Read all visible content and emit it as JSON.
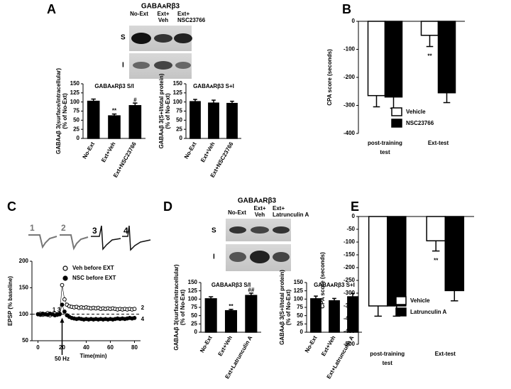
{
  "panels": {
    "A": {
      "letter": "A",
      "blot_title": "GABAᴀRβ3",
      "lanes": [
        [
          "No-Ext"
        ],
        [
          "Ext+",
          "Veh"
        ],
        [
          "Ext+",
          "NSC23766"
        ]
      ],
      "rows": [
        "S",
        "I"
      ]
    },
    "B": {
      "letter": "B"
    },
    "C": {
      "letter": "C",
      "traces": [
        "1",
        "2",
        "3",
        "4"
      ]
    },
    "D": {
      "letter": "D",
      "blot_title": "GABAᴀRβ3",
      "lanes": [
        [
          "No-Ext"
        ],
        [
          "Ext+",
          "Veh"
        ],
        [
          "Ext+",
          "Latrunculin A"
        ]
      ],
      "rows": [
        "S",
        "I"
      ]
    },
    "E": {
      "letter": "E"
    }
  },
  "chart_data": [
    {
      "type": "bar",
      "title": "GABAᴀRβ3 S/I",
      "ylabel": [
        "GABAᴀβ 3(surface/intracellular)",
        "(% of No-Ext)"
      ],
      "categories": [
        "No-Ext",
        "Ext+Veh",
        "Ext+NSC23766"
      ],
      "values": [
        102,
        62,
        90
      ],
      "errors": [
        6,
        5,
        7
      ],
      "significance": [
        null,
        "**",
        "#"
      ],
      "color": "#000000",
      "label_rotation": -60,
      "ylim": [
        0,
        150
      ],
      "yticks": [
        0,
        25,
        50,
        75,
        100,
        125,
        150
      ]
    },
    {
      "type": "bar",
      "title": "GABAᴀRβ3 S+I",
      "ylabel": [
        "GABAᴀβ 3(S+I/total protein)",
        "(% of No-Ext)"
      ],
      "categories": [
        "No-Ext",
        "Ext+Veh",
        "Ext+NSC23766"
      ],
      "values": [
        101,
        97,
        96
      ],
      "errors": [
        6,
        8,
        6
      ],
      "color": "#000000",
      "label_rotation": -60,
      "ylim": [
        0,
        150
      ],
      "yticks": [
        0,
        25,
        50,
        75,
        100,
        125,
        150
      ]
    },
    {
      "type": "bar",
      "ylabel": [
        "CPA score (seconds)"
      ],
      "categories": [
        [
          "post-training",
          "test"
        ],
        [
          "Ext-test"
        ]
      ],
      "series": [
        {
          "name": "Vehicle",
          "color": "#ffffff",
          "values": [
            -265,
            -50
          ],
          "errors": [
            40,
            40
          ],
          "significance": [
            null,
            "**"
          ]
        },
        {
          "name": "NSC23766",
          "color": "#000000",
          "values": [
            -270,
            -255
          ],
          "errors": [
            40,
            35
          ]
        }
      ],
      "legend": "lower right",
      "ylim": [
        -400,
        0
      ],
      "yticks": [
        0,
        -100,
        -200,
        -300,
        -400
      ]
    },
    {
      "type": "line",
      "ylabel": [
        "EPSP (% baseline)"
      ],
      "xlabel": "Time(min)",
      "x": [
        0,
        2,
        4,
        6,
        8,
        10,
        12,
        14,
        16,
        18,
        20,
        22,
        24,
        26,
        28,
        30,
        32,
        34,
        36,
        38,
        40,
        42,
        44,
        46,
        48,
        50,
        52,
        54,
        56,
        58,
        60,
        62,
        64,
        66,
        68,
        70,
        72,
        74,
        76,
        78,
        80
      ],
      "series": [
        {
          "name": "Veh before EXT",
          "color": "#000000",
          "marker_fill": "#ffffff",
          "values": [
            100,
            101,
            99,
            100,
            102,
            98,
            100,
            101,
            99,
            100,
            155,
            128,
            118,
            115,
            114,
            113,
            114,
            112,
            113,
            112,
            113,
            112,
            111,
            112,
            111,
            112,
            110,
            111,
            110,
            111,
            110,
            111,
            110,
            109,
            110,
            109,
            110,
            109,
            110,
            109,
            110
          ]
        },
        {
          "name": "NSC before EXT",
          "color": "#000000",
          "marker_fill": "#000000",
          "values": [
            100,
            99,
            101,
            100,
            99,
            101,
            100,
            98,
            100,
            101,
            118,
            105,
            98,
            95,
            93,
            92,
            91,
            92,
            91,
            90,
            91,
            90,
            91,
            90,
            91,
            90,
            91,
            90,
            91,
            90,
            91,
            90,
            91,
            92,
            91,
            92,
            91,
            92,
            93,
            92,
            93
          ]
        }
      ],
      "hline": 100,
      "annotations": [
        "1",
        "3",
        "2",
        "4",
        "50 Hz"
      ],
      "xlim": [
        -5,
        85
      ],
      "xticks": [
        0,
        20,
        40,
        60,
        80
      ],
      "ylim": [
        50,
        200
      ],
      "yticks": [
        50,
        100,
        150,
        200
      ]
    },
    {
      "type": "bar",
      "title": "GABAᴀRβ3 S/I",
      "ylabel": [
        "GABAᴀβ 3(surface/intracellular)",
        "(% of No-Ext)"
      ],
      "categories": [
        "No-Ext",
        "Ext+Veh",
        "Ext+Latrunculin A"
      ],
      "values": [
        101,
        65,
        111
      ],
      "errors": [
        6,
        4,
        7
      ],
      "significance": [
        null,
        "**",
        "##"
      ],
      "color": "#000000",
      "label_rotation": -60,
      "ylim": [
        0,
        150
      ],
      "yticks": [
        0,
        25,
        50,
        75,
        100,
        125,
        150
      ]
    },
    {
      "type": "bar",
      "title": "GABAᴀRβ3 S+I",
      "ylabel": [
        "GABAᴀβ 3(S+I/total protein)",
        "(% of No-Ext)"
      ],
      "categories": [
        "No-Ext",
        "Ext+Veh",
        "Ext+Latrunculin A"
      ],
      "values": [
        101,
        95,
        107
      ],
      "errors": [
        8,
        7,
        10
      ],
      "color": "#000000",
      "label_rotation": -60,
      "ylim": [
        0,
        150
      ],
      "yticks": [
        0,
        25,
        50,
        75,
        100,
        125,
        150
      ]
    },
    {
      "type": "bar",
      "ylabel": [
        "CPA score (seconds)"
      ],
      "categories": [
        [
          "post-training",
          "test"
        ],
        [
          "Ext-test"
        ]
      ],
      "series": [
        {
          "name": "Vehicle",
          "color": "#ffffff",
          "values": [
            -350,
            -95
          ],
          "errors": [
            40,
            40
          ],
          "significance": [
            null,
            "**"
          ]
        },
        {
          "name": "Latrunculin A",
          "color": "#000000",
          "values": [
            -350,
            -290
          ],
          "errors": [
            40,
            40
          ]
        }
      ],
      "legend": "lower right",
      "ylim": [
        -500,
        0
      ],
      "yticks": [
        0,
        -50,
        -100,
        -150,
        -200,
        -250,
        -300,
        -350,
        -400,
        -450,
        -500
      ]
    }
  ]
}
